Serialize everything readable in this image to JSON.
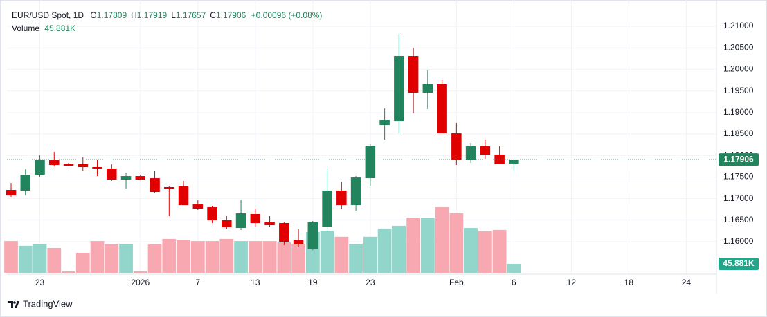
{
  "chart_data": {
    "type": "candlestick",
    "title": "EUR/USD Spot, 1D",
    "ohlc_prefixes": [
      "O",
      "H",
      "L",
      "C"
    ],
    "change_label": "+0.00096 (+0.08%)",
    "volume_title": "Volume",
    "brand": "TradingView",
    "open": [
      1.17202,
      1.17186,
      1.17554,
      1.17891,
      1.17795,
      1.17795,
      1.17731,
      1.17699,
      1.17442,
      1.17522,
      1.17474,
      1.17266,
      1.17282,
      1.16865,
      1.16801,
      1.16497,
      1.16321,
      1.16641,
      1.16465,
      1.16433,
      1.16032,
      1.1584,
      1.16353,
      1.17186,
      1.16849,
      1.17474,
      1.18708,
      1.18804,
      1.20311,
      1.19462,
      1.19654,
      1.18516,
      1.17907,
      1.18212,
      1.18019,
      1.17809
    ],
    "high": [
      1.17362,
      1.17683,
      1.18003,
      1.18083,
      1.17827,
      1.17955,
      1.17891,
      1.17795,
      1.17602,
      1.17554,
      1.17635,
      1.17282,
      1.1741,
      1.16962,
      1.16833,
      1.16593,
      1.16962,
      1.16769,
      1.16593,
      1.16465,
      1.16288,
      1.16481,
      1.17699,
      1.17394,
      1.17522,
      1.1826,
      1.19093,
      1.20824,
      1.20503,
      1.19974,
      1.1975,
      1.18756,
      1.18292,
      1.18372,
      1.18212,
      1.17919
    ],
    "low": [
      1.17042,
      1.17074,
      1.17506,
      1.17747,
      1.17747,
      1.17651,
      1.17522,
      1.1741,
      1.17234,
      1.17426,
      1.17122,
      1.16593,
      1.16849,
      1.16737,
      1.16433,
      1.16288,
      1.16272,
      1.16353,
      1.16353,
      1.1592,
      1.15872,
      1.15808,
      1.16304,
      1.16753,
      1.16721,
      1.17298,
      1.18372,
      1.18516,
      1.18981,
      1.19077,
      1.18516,
      1.17779,
      1.17827,
      1.17923,
      1.17795,
      1.17657
    ],
    "close": [
      1.17074,
      1.17554,
      1.17891,
      1.17779,
      1.17763,
      1.17731,
      1.17699,
      1.17442,
      1.17522,
      1.17442,
      1.17154,
      1.17234,
      1.16849,
      1.16769,
      1.16497,
      1.16337,
      1.16657,
      1.16433,
      1.16385,
      1.16,
      1.15952,
      1.16449,
      1.17186,
      1.16849,
      1.1749,
      1.18212,
      1.1882,
      1.20311,
      1.19462,
      1.19654,
      1.18516,
      1.17907,
      1.18212,
      1.18019,
      1.17795,
      1.17906
    ],
    "volume": {
      "values": [
        162000,
        138000,
        148000,
        127000,
        7000,
        102000,
        162000,
        148000,
        148000,
        7000,
        145000,
        173000,
        169000,
        162000,
        162000,
        173000,
        162000,
        162000,
        162000,
        155000,
        145000,
        208000,
        215000,
        184000,
        148000,
        184000,
        226000,
        240000,
        282000,
        282000,
        335000,
        304000,
        229000,
        212000,
        219000,
        45881
      ],
      "last_label": "45.881K"
    },
    "up_color": "#22845c",
    "down_color": "#e10000",
    "volume_up_color": "#92d6cb",
    "volume_down_color": "#f7a8b0",
    "last_price_color": "#22845c",
    "xlim": [
      -0.29,
      49.1
    ],
    "xticks": [
      {
        "value": 2,
        "label": "23"
      },
      {
        "value": 9,
        "label": "2026"
      },
      {
        "value": 13,
        "label": "7"
      },
      {
        "value": 17,
        "label": "13"
      },
      {
        "value": 21,
        "label": "19"
      },
      {
        "value": 25,
        "label": "23"
      },
      {
        "value": 31,
        "label": "Feb"
      },
      {
        "value": 35,
        "label": "6"
      },
      {
        "value": 39,
        "label": "12"
      },
      {
        "value": 43,
        "label": "18"
      },
      {
        "value": 47,
        "label": "24"
      }
    ],
    "ylim": [
      1.15279,
      1.21449
    ],
    "yticks": [
      {
        "value": 1.16,
        "label": "1.16000"
      },
      {
        "value": 1.165,
        "label": "1.16500"
      },
      {
        "value": 1.17,
        "label": "1.17000"
      },
      {
        "value": 1.175,
        "label": "1.17500"
      },
      {
        "value": 1.18,
        "label": "1.18000"
      },
      {
        "value": 1.185,
        "label": "1.18500"
      },
      {
        "value": 1.19,
        "label": "1.19000"
      },
      {
        "value": 1.195,
        "label": "1.19500"
      },
      {
        "value": 1.2,
        "label": "1.20000"
      },
      {
        "value": 1.205,
        "label": "1.20500"
      },
      {
        "value": 1.21,
        "label": "1.21000"
      }
    ],
    "grid": true
  }
}
